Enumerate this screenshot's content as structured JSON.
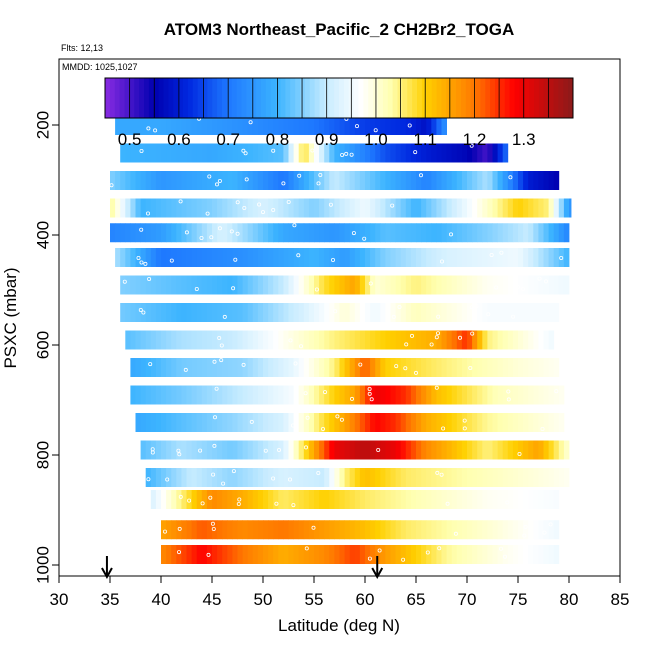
{
  "chart_data": {
    "type": "heatmap",
    "title": "ATOM3 Northeast_Pacific_2 CH2Br2_TOGA",
    "flights_label": "Flts: 12,13",
    "dates_label": "MMDD: 1025,1027",
    "xlabel": "Latitude (deg N)",
    "ylabel": "PSXC (mbar)",
    "xlim": [
      30,
      85
    ],
    "ylim": [
      1020,
      80
    ],
    "x_ticks": [
      30,
      35,
      40,
      45,
      50,
      55,
      60,
      65,
      70,
      75,
      80,
      85
    ],
    "y_ticks": [
      200,
      400,
      600,
      800,
      1000
    ],
    "colorbar": {
      "range": [
        0.45,
        1.4
      ],
      "ticks": [
        0.5,
        0.6,
        0.7,
        0.8,
        0.9,
        1.0,
        1.1,
        1.2,
        1.3
      ],
      "tick_labels": [
        "0.5",
        "0.6",
        "0.7",
        "0.8",
        "0.9",
        "1.0",
        "1.1",
        "1.2",
        "1.3"
      ],
      "stops": [
        {
          "v": 0.45,
          "c": "#8a2be2"
        },
        {
          "v": 0.55,
          "c": "#0000b0"
        },
        {
          "v": 0.62,
          "c": "#0028e0"
        },
        {
          "v": 0.7,
          "c": "#1e78ff"
        },
        {
          "v": 0.8,
          "c": "#3cb4ff"
        },
        {
          "v": 0.9,
          "c": "#c8ecff"
        },
        {
          "v": 0.97,
          "c": "#ffffff"
        },
        {
          "v": 1.03,
          "c": "#ffffb0"
        },
        {
          "v": 1.1,
          "c": "#ffd000"
        },
        {
          "v": 1.2,
          "c": "#ff7800"
        },
        {
          "v": 1.28,
          "c": "#ff0000"
        },
        {
          "v": 1.4,
          "c": "#8b1a1a"
        }
      ]
    },
    "flight_marks_latitude": [
      34.7,
      61.2
    ],
    "bands": [
      {
        "p": 200,
        "lat": [
          35.5,
          68.0
        ],
        "knots": [
          [
            35.5,
            0.78
          ],
          [
            40,
            0.78
          ],
          [
            48,
            0.74
          ],
          [
            55,
            0.7
          ],
          [
            60,
            0.64
          ],
          [
            64,
            0.62
          ],
          [
            66,
            0.58
          ],
          [
            68,
            0.75
          ]
        ]
      },
      {
        "p": 250,
        "lat": [
          36.0,
          74.0
        ],
        "knots": [
          [
            36,
            0.8
          ],
          [
            45,
            0.78
          ],
          [
            52,
            0.82
          ],
          [
            54,
            1.08
          ],
          [
            57,
            0.8
          ],
          [
            62,
            0.66
          ],
          [
            66,
            0.6
          ],
          [
            70,
            0.56
          ],
          [
            72,
            0.5
          ],
          [
            74,
            0.7
          ]
        ]
      },
      {
        "p": 300,
        "lat": [
          35.0,
          79.0
        ],
        "knots": [
          [
            35,
            0.85
          ],
          [
            40,
            0.75
          ],
          [
            47,
            0.8
          ],
          [
            52,
            0.7
          ],
          [
            57,
            0.9
          ],
          [
            62,
            0.8
          ],
          [
            66,
            0.72
          ],
          [
            72,
            0.88
          ],
          [
            76,
            0.6
          ],
          [
            79,
            0.55
          ]
        ]
      },
      {
        "p": 350,
        "lat": [
          35.0,
          80.2
        ],
        "knots": [
          [
            35,
            1.05
          ],
          [
            38,
            0.8
          ],
          [
            45,
            0.85
          ],
          [
            50,
            0.92
          ],
          [
            55,
            0.85
          ],
          [
            60,
            0.95
          ],
          [
            65,
            0.8
          ],
          [
            70,
            0.95
          ],
          [
            75,
            1.1
          ],
          [
            78,
            1.05
          ],
          [
            80,
            0.75
          ]
        ]
      },
      {
        "p": 395,
        "lat": [
          35.0,
          80.0
        ],
        "knots": [
          [
            35,
            0.72
          ],
          [
            40,
            0.76
          ],
          [
            46,
            0.92
          ],
          [
            52,
            0.78
          ],
          [
            57,
            0.75
          ],
          [
            62,
            0.82
          ],
          [
            67,
            0.8
          ],
          [
            72,
            0.85
          ],
          [
            76,
            0.9
          ],
          [
            80,
            0.72
          ]
        ]
      },
      {
        "p": 440,
        "lat": [
          35.5,
          80.0
        ],
        "knots": [
          [
            35.5,
            0.88
          ],
          [
            40,
            0.7
          ],
          [
            48,
            0.74
          ],
          [
            55,
            0.8
          ],
          [
            58,
            0.76
          ],
          [
            62,
            0.85
          ],
          [
            68,
            0.92
          ],
          [
            75,
            0.95
          ],
          [
            80,
            0.8
          ]
        ]
      },
      {
        "p": 490,
        "lat": [
          36.0,
          80.0
        ],
        "knots": [
          [
            36,
            0.85
          ],
          [
            42,
            0.82
          ],
          [
            47,
            0.8
          ],
          [
            52,
            0.9
          ],
          [
            56,
            1.08
          ],
          [
            59,
            1.15
          ],
          [
            61,
            1.0
          ],
          [
            65,
            1.05
          ],
          [
            72,
            0.98
          ],
          [
            80,
            0.95
          ]
        ]
      },
      {
        "p": 540,
        "lat": [
          36.0,
          79.0
        ],
        "knots": [
          [
            36,
            0.84
          ],
          [
            42,
            0.8
          ],
          [
            48,
            0.82
          ],
          [
            54,
            0.92
          ],
          [
            58,
            1.0
          ],
          [
            61,
            0.95
          ],
          [
            65,
            1.02
          ],
          [
            72,
            0.96
          ],
          [
            79,
            0.96
          ]
        ]
      },
      {
        "p": 590,
        "lat": [
          36.5,
          78.5
        ],
        "knots": [
          [
            36.5,
            0.82
          ],
          [
            42,
            0.88
          ],
          [
            47,
            0.9
          ],
          [
            52,
            0.98
          ],
          [
            57,
            1.05
          ],
          [
            62,
            1.1
          ],
          [
            67,
            1.14
          ],
          [
            70,
            1.25
          ],
          [
            72,
            1.05
          ],
          [
            78.5,
            0.95
          ]
        ]
      },
      {
        "p": 640,
        "lat": [
          37.0,
          79.0
        ],
        "knots": [
          [
            37,
            0.78
          ],
          [
            42,
            0.84
          ],
          [
            48,
            0.86
          ],
          [
            53,
            0.94
          ],
          [
            57,
            1.05
          ],
          [
            60,
            1.22
          ],
          [
            62,
            1.1
          ],
          [
            68,
            1.05
          ],
          [
            75,
            1.0
          ],
          [
            79,
            0.98
          ]
        ]
      },
      {
        "p": 690,
        "lat": [
          37.0,
          79.5
        ],
        "knots": [
          [
            37,
            0.8
          ],
          [
            42,
            0.84
          ],
          [
            48,
            0.9
          ],
          [
            53,
            0.96
          ],
          [
            57,
            1.1
          ],
          [
            59,
            1.15
          ],
          [
            61,
            1.3
          ],
          [
            64,
            1.25
          ],
          [
            67,
            1.12
          ],
          [
            73,
            1.02
          ],
          [
            79.5,
            0.98
          ]
        ]
      },
      {
        "p": 740,
        "lat": [
          37.5,
          79.5
        ],
        "knots": [
          [
            37.5,
            0.78
          ],
          [
            42,
            0.82
          ],
          [
            47,
            0.86
          ],
          [
            52,
            0.92
          ],
          [
            56,
            1.08
          ],
          [
            58,
            1.15
          ],
          [
            61,
            1.28
          ],
          [
            63,
            1.25
          ],
          [
            66,
            1.14
          ],
          [
            72,
            1.04
          ],
          [
            79.5,
            0.98
          ]
        ]
      },
      {
        "p": 790,
        "lat": [
          38.0,
          80.0
        ],
        "knots": [
          [
            38,
            0.82
          ],
          [
            42,
            0.88
          ],
          [
            47,
            0.84
          ],
          [
            52,
            0.92
          ],
          [
            55,
            1.15
          ],
          [
            57,
            1.3
          ],
          [
            60,
            1.35
          ],
          [
            63,
            1.3
          ],
          [
            66,
            1.18
          ],
          [
            72,
            1.05
          ],
          [
            77,
            1.15
          ],
          [
            80,
            1.0
          ]
        ]
      },
      {
        "p": 840,
        "lat": [
          38.5,
          80.0
        ],
        "knots": [
          [
            38.5,
            0.8
          ],
          [
            43,
            0.9
          ],
          [
            47,
            0.86
          ],
          [
            52,
            0.92
          ],
          [
            56,
            0.9
          ],
          [
            58,
            1.05
          ],
          [
            60,
            1.12
          ],
          [
            64,
            1.06
          ],
          [
            72,
            1.02
          ],
          [
            80,
            0.98
          ]
        ]
      },
      {
        "p": 880,
        "lat": [
          39.0,
          79.0
        ],
        "knots": [
          [
            39,
            0.92
          ],
          [
            42,
            1.05
          ],
          [
            45,
            1.18
          ],
          [
            48,
            1.14
          ],
          [
            52,
            1.06
          ],
          [
            56,
            1.1
          ],
          [
            60,
            1.06
          ],
          [
            66,
            1.02
          ],
          [
            72,
            0.98
          ],
          [
            79,
            0.96
          ]
        ]
      },
      {
        "p": 935,
        "lat": [
          40.0,
          79.0
        ],
        "knots": [
          [
            40,
            1.15
          ],
          [
            44,
            1.22
          ],
          [
            48,
            1.18
          ],
          [
            52,
            1.2
          ],
          [
            56,
            1.16
          ],
          [
            60,
            1.12
          ],
          [
            64,
            1.06
          ],
          [
            70,
            1.02
          ],
          [
            79,
            0.95
          ]
        ]
      },
      {
        "p": 980,
        "lat": [
          40.0,
          79.0
        ],
        "knots": [
          [
            40,
            1.18
          ],
          [
            44,
            1.28
          ],
          [
            48,
            1.2
          ],
          [
            52,
            1.14
          ],
          [
            56,
            1.18
          ],
          [
            59,
            1.24
          ],
          [
            62,
            1.16
          ],
          [
            68,
            1.04
          ],
          [
            74,
            0.98
          ],
          [
            79,
            0.95
          ]
        ]
      }
    ]
  }
}
